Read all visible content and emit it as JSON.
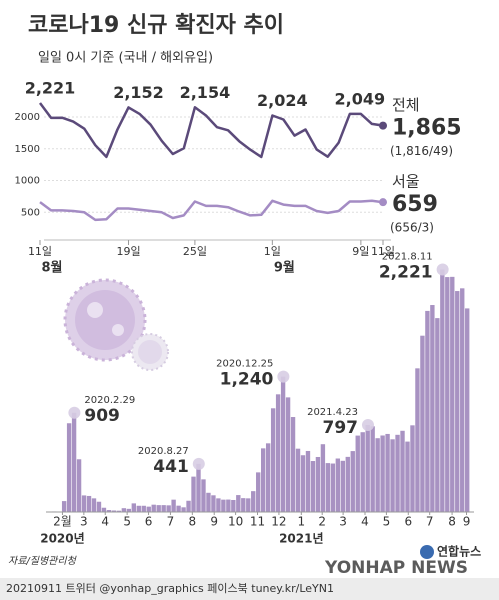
{
  "chart_data": [
    {
      "type": "line",
      "title": "코로나19 신규 확진자 추이",
      "subtitle": "일일 0시 기준 (국내 / 해외유입)",
      "categories": [
        "11일",
        null,
        null,
        null,
        null,
        null,
        null,
        null,
        "19일",
        null,
        null,
        null,
        null,
        null,
        "25일",
        null,
        null,
        null,
        null,
        null,
        null,
        "1일",
        null,
        null,
        null,
        null,
        null,
        null,
        null,
        "9일",
        null,
        "11일"
      ],
      "month_labels": [
        "8월",
        null,
        null,
        null,
        null,
        null,
        null,
        null,
        null,
        null,
        null,
        null,
        null,
        null,
        null,
        null,
        null,
        null,
        null,
        null,
        null,
        "9월",
        null,
        null,
        null,
        null,
        null,
        null,
        null,
        null,
        null,
        null
      ],
      "series": [
        {
          "name": "전체",
          "color": "#5b4a7a",
          "breakdown": "(1,816/49)",
          "values": [
            2221,
            1987,
            1990,
            1928,
            1816,
            1556,
            1372,
            1805,
            2152,
            2050,
            1880,
            1626,
            1418,
            1507,
            2154,
            2025,
            1840,
            1791,
            1619,
            1487,
            1372,
            2024,
            1961,
            1708,
            1804,
            1490,
            1375,
            1597,
            2049,
            2050,
            1892,
            1865
          ],
          "value_labels": [
            "2,221",
            null,
            null,
            null,
            null,
            null,
            null,
            null,
            "2,152",
            null,
            null,
            null,
            null,
            null,
            "2,154",
            null,
            null,
            null,
            null,
            null,
            null,
            "2,024",
            null,
            null,
            null,
            null,
            null,
            null,
            "2,049",
            null,
            null,
            "1,865"
          ]
        },
        {
          "name": "서울",
          "color": "#a48cc4",
          "breakdown": "(656/3)",
          "values": [
            660,
            530,
            530,
            520,
            500,
            380,
            390,
            560,
            560,
            540,
            520,
            500,
            410,
            450,
            670,
            600,
            600,
            580,
            510,
            450,
            460,
            680,
            620,
            600,
            600,
            520,
            490,
            520,
            670,
            670,
            680,
            659
          ],
          "value_labels": [
            null,
            null,
            null,
            null,
            null,
            null,
            null,
            null,
            null,
            null,
            null,
            null,
            null,
            null,
            null,
            null,
            null,
            null,
            null,
            null,
            null,
            null,
            null,
            null,
            null,
            null,
            null,
            null,
            null,
            null,
            null,
            "659"
          ]
        }
      ],
      "ylim": [
        0,
        2300
      ],
      "yticks": [
        500,
        1000,
        1500,
        2000
      ],
      "grid": true
    },
    {
      "type": "bar",
      "color": "#a892c2",
      "values": [
        5,
        3,
        100,
        813,
        909,
        483,
        152,
        147,
        125,
        94,
        39,
        18,
        14,
        12,
        35,
        29,
        79,
        57,
        57,
        49,
        67,
        63,
        63,
        61,
        113,
        58,
        43,
        103,
        324,
        441,
        299,
        176,
        153,
        125,
        113,
        114,
        110,
        155,
        127,
        125,
        191,
        363,
        583,
        629,
        950,
        1078,
        1240,
        1050,
        870,
        580,
        520,
        559,
        467,
        504,
        621,
        448,
        444,
        490,
        469,
        505,
        558,
        700,
        731,
        797,
        785,
        676,
        701,
        715,
        666,
        707,
        744,
        645,
        794,
        1316,
        1615,
        1842,
        1896,
        1776,
        2221,
        2152,
        2154,
        2024,
        2049,
        1865
      ],
      "value_labels": [
        null,
        null,
        null,
        null,
        "909",
        null,
        null,
        null,
        null,
        null,
        null,
        null,
        null,
        null,
        null,
        null,
        null,
        null,
        null,
        null,
        null,
        null,
        null,
        null,
        null,
        null,
        null,
        null,
        null,
        "441",
        null,
        null,
        null,
        null,
        null,
        null,
        null,
        null,
        null,
        null,
        null,
        null,
        null,
        null,
        null,
        null,
        "1,240",
        null,
        null,
        null,
        null,
        null,
        null,
        null,
        null,
        null,
        null,
        null,
        null,
        null,
        null,
        null,
        null,
        "797",
        null,
        null,
        null,
        null,
        null,
        null,
        null,
        null,
        null,
        null,
        null,
        null,
        null,
        null,
        "2,221",
        null,
        null,
        null,
        null,
        null
      ],
      "date_labels": [
        null,
        null,
        null,
        null,
        "2020.2.29",
        null,
        null,
        null,
        null,
        null,
        null,
        null,
        null,
        null,
        null,
        null,
        null,
        null,
        null,
        null,
        null,
        null,
        null,
        null,
        null,
        null,
        null,
        null,
        null,
        "2020.8.27",
        null,
        null,
        null,
        null,
        null,
        null,
        null,
        null,
        null,
        null,
        null,
        null,
        null,
        null,
        null,
        null,
        "2020.12.25",
        null,
        null,
        null,
        null,
        null,
        null,
        null,
        null,
        null,
        null,
        null,
        null,
        null,
        null,
        null,
        null,
        "2021.4.23",
        null,
        null,
        null,
        null,
        null,
        null,
        null,
        null,
        null,
        null,
        null,
        null,
        null,
        null,
        "2021.8.11",
        null,
        null,
        null,
        null,
        null
      ],
      "xlim": [
        0,
        84
      ],
      "xticks": [
        {
          "value": 2.1,
          "label": "2월"
        },
        {
          "value": 6.4,
          "label": "3"
        },
        {
          "value": 10.7,
          "label": "4"
        },
        {
          "value": 15.1,
          "label": "5"
        },
        {
          "value": 19.4,
          "label": "6"
        },
        {
          "value": 23.8,
          "label": "7"
        },
        {
          "value": 28.2,
          "label": "8"
        },
        {
          "value": 32.6,
          "label": "9"
        },
        {
          "value": 36.9,
          "label": "10"
        },
        {
          "value": 41.3,
          "label": "11"
        },
        {
          "value": 45.6,
          "label": "12"
        },
        {
          "value": 50.1,
          "label": "1"
        },
        {
          "value": 54.3,
          "label": "2"
        },
        {
          "value": 58.5,
          "label": "3"
        },
        {
          "value": 62.9,
          "label": "4"
        },
        {
          "value": 67.2,
          "label": "5"
        },
        {
          "value": 71.6,
          "label": "6"
        },
        {
          "value": 75.9,
          "label": "7"
        },
        {
          "value": 80.4,
          "label": "8"
        },
        {
          "value": 83.3,
          "label": "9"
        }
      ],
      "year_labels": [
        {
          "value": 2.1,
          "label": "2020년"
        },
        {
          "value": 50.1,
          "label": "2021년"
        }
      ],
      "ylim": [
        0,
        2400
      ],
      "source": "자료/질병관리청",
      "logo": "연합뉴스",
      "watermark": "YONHAP NEWS",
      "footer": "20210911 트위터 @yonhap_graphics  페이스북 tuney.kr/LeYN1"
    }
  ]
}
